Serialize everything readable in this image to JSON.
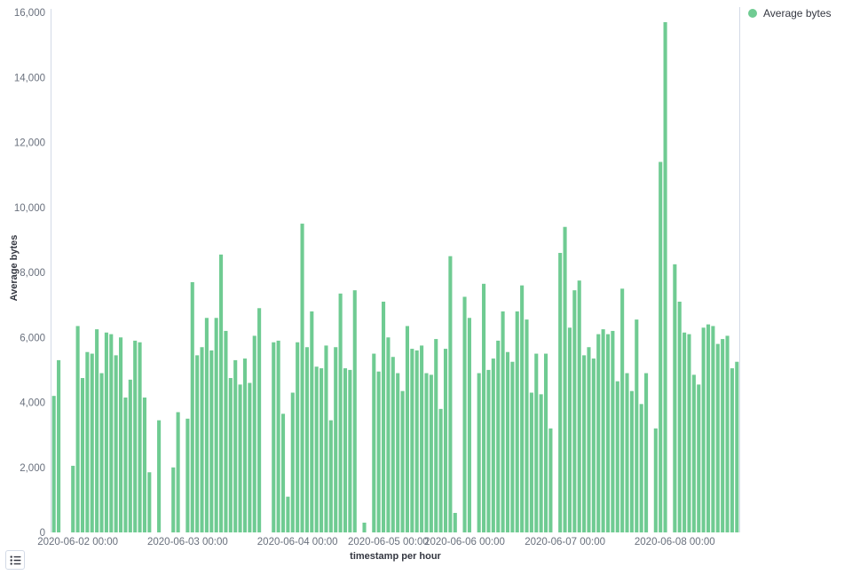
{
  "legend": {
    "label": "Average bytes",
    "color": "#6fcb92"
  },
  "y_axis": {
    "title": "Average bytes",
    "min": 0,
    "max": 16000,
    "tick_interval": 2000,
    "tick_labels": [
      "0",
      "2,000",
      "4,000",
      "6,000",
      "8,000",
      "10,000",
      "12,000",
      "14,000",
      "16,000"
    ]
  },
  "x_axis": {
    "title": "timestamp per hour"
  },
  "chart_data": {
    "type": "bar",
    "title": "",
    "xlabel": "timestamp per hour",
    "ylabel": "Average bytes",
    "ylim": [
      0,
      16000
    ],
    "grid": false,
    "legend_position": "top-right",
    "bar_color": "#6fcb92",
    "series": [
      {
        "name": "Average bytes",
        "values": [
          4200,
          5300,
          null,
          null,
          2050,
          6350,
          4750,
          5550,
          5500,
          6250,
          4900,
          6150,
          6100,
          5450,
          6000,
          4150,
          4700,
          5900,
          5850,
          4150,
          1850,
          null,
          3450,
          null,
          null,
          2000,
          3700,
          null,
          3500,
          7700,
          5450,
          5700,
          6600,
          5600,
          6600,
          8550,
          6200,
          4750,
          5300,
          4550,
          5350,
          4600,
          6050,
          6900,
          null,
          null,
          5850,
          5900,
          3650,
          1100,
          4300,
          5850,
          9500,
          5700,
          6800,
          5100,
          5050,
          5750,
          3450,
          5700,
          7350,
          5050,
          5000,
          7450,
          null,
          300,
          null,
          5500,
          4950,
          7100,
          6000,
          5400,
          4900,
          4350,
          6350,
          5650,
          5600,
          5750,
          4900,
          4850,
          5950,
          3800,
          5650,
          8500,
          600,
          null,
          7250,
          6600,
          null,
          4900,
          7650,
          5000,
          5350,
          5900,
          6800,
          5550,
          5250,
          6800,
          7600,
          6550,
          4300,
          5500,
          4250,
          5500,
          3200,
          null,
          8600,
          9400,
          6300,
          7450,
          7750,
          5450,
          5700,
          5350,
          6100,
          6250,
          6100,
          6200,
          4650,
          7500,
          4900,
          4350,
          6550,
          3950,
          4900,
          null,
          3200,
          11400,
          15700,
          null,
          8250,
          7100,
          6150,
          6100,
          4850,
          4550,
          6300,
          6400,
          6350,
          5800,
          5950,
          6050,
          5050,
          5250
        ]
      }
    ],
    "x_ticks": [
      {
        "label": "2020-06-02 00:00",
        "index": 5
      },
      {
        "label": "2020-06-03 00:00",
        "index": 28
      },
      {
        "label": "2020-06-04 00:00",
        "index": 51
      },
      {
        "label": "2020-06-05 00:00",
        "index": 70
      },
      {
        "label": "2020-06-06 00:00",
        "index": 86
      },
      {
        "label": "2020-06-07 00:00",
        "index": 107
      },
      {
        "label": "2020-06-08 00:00",
        "index": 130
      }
    ]
  },
  "controls": {
    "legend_toggle_icon": "legend-list-icon"
  }
}
